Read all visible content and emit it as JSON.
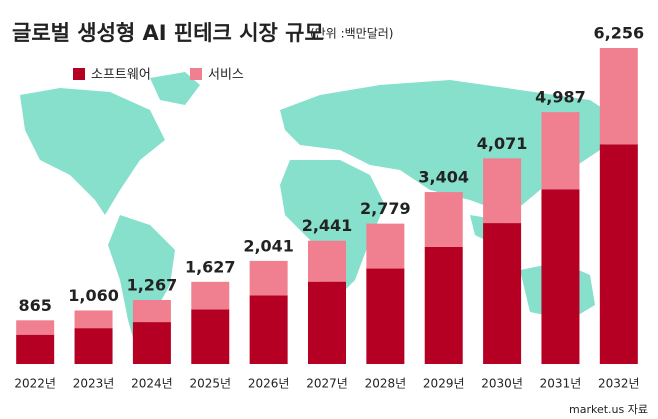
{
  "chart_data": {
    "type": "stacked-bar",
    "title": "글로벌 생성형 AI 핀테크 시장 규모",
    "subtitle": "(단위 :백만달러)",
    "source": "market.us 자료",
    "categories": [
      "2022년",
      "2023년",
      "2024년",
      "2025년",
      "2026년",
      "2027년",
      "2028년",
      "2029년",
      "2030년",
      "2031년",
      "2032년"
    ],
    "series": [
      {
        "name": "소프트웨어",
        "color": "#b50024",
        "values": [
          580,
          710,
          830,
          1080,
          1360,
          1630,
          1890,
          2320,
          2790,
          3460,
          4350
        ]
      },
      {
        "name": "서비스",
        "color": "#f0808f",
        "values": [
          285,
          350,
          437,
          547,
          681,
          811,
          889,
          1084,
          1281,
          1527,
          1906
        ]
      }
    ],
    "totals": [
      865,
      1060,
      1267,
      1627,
      2041,
      2441,
      2779,
      3404,
      4071,
      4987,
      6256
    ],
    "total_labels": [
      "865",
      "1,060",
      "1,267",
      "1,627",
      "2,041",
      "2,441",
      "2,779",
      "3,404",
      "4,071",
      "4,987",
      "6,256"
    ]
  }
}
